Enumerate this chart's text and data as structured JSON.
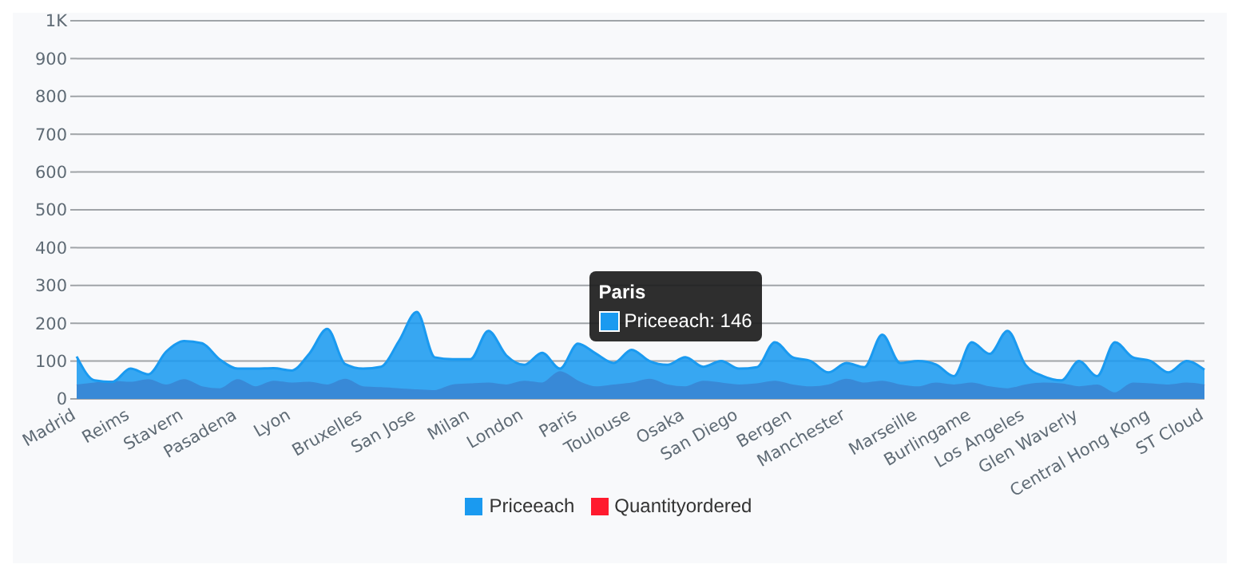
{
  "chart_data": {
    "type": "area",
    "categories": [
      "Madrid",
      null,
      null,
      "Reims",
      null,
      null,
      "Stavern",
      null,
      null,
      "Pasadena",
      null,
      null,
      "Lyon",
      null,
      null,
      null,
      "Bruxelles",
      null,
      null,
      "San Jose",
      null,
      null,
      "Milan",
      null,
      null,
      "London",
      null,
      null,
      "Paris",
      null,
      null,
      "Toulouse",
      null,
      null,
      "Osaka",
      null,
      null,
      "San Diego",
      null,
      null,
      "Bergen",
      null,
      null,
      "Manchester",
      null,
      null,
      null,
      "Marseille",
      null,
      null,
      "Burlingame",
      null,
      null,
      "Los Angeles",
      null,
      null,
      "Glen Waverly",
      null,
      null,
      null,
      "Central Hong Kong",
      null,
      null,
      "ST Cloud"
    ],
    "series": [
      {
        "name": "Quantityordered",
        "color": "#ff1a2e",
        "values": [
          35,
          40,
          45,
          42,
          49,
          35,
          49,
          30,
          25,
          49,
          30,
          45,
          40,
          42,
          35,
          50,
          30,
          28,
          25,
          22,
          20,
          35,
          38,
          40,
          35,
          45,
          40,
          70,
          45,
          30,
          35,
          40,
          50,
          35,
          30,
          45,
          40,
          35,
          38,
          45,
          35,
          30,
          35,
          50,
          40,
          45,
          35,
          30,
          40,
          35,
          40,
          30,
          25,
          35,
          40,
          38,
          30,
          35,
          14,
          40,
          38,
          35,
          40,
          35
        ]
      },
      {
        "name": "Priceeach",
        "color": "#1a9af0",
        "values": [
          112,
          49,
          45,
          80,
          65,
          125,
          153,
          147,
          104,
          80,
          80,
          81,
          75,
          120,
          185,
          92,
          80,
          85,
          153,
          230,
          110,
          105,
          105,
          180,
          115,
          90,
          122,
          80,
          146,
          120,
          95,
          130,
          100,
          90,
          110,
          85,
          100,
          80,
          84,
          150,
          110,
          100,
          70,
          95,
          84,
          170,
          95,
          100,
          91,
          60,
          150,
          119,
          180,
          90,
          60,
          49,
          100,
          60,
          150,
          110,
          100,
          70,
          100,
          77
        ]
      }
    ],
    "ylim": [
      0,
      1000
    ],
    "yticks": [
      0,
      100,
      200,
      300,
      400,
      500,
      600,
      700,
      800,
      900,
      {
        "value": 1000,
        "label": "1K"
      }
    ],
    "grid": "y",
    "legend": "bottom",
    "annotations": [
      {
        "text": "Priceeach: 146",
        "x": "Paris",
        "y": 146
      }
    ]
  }
}
